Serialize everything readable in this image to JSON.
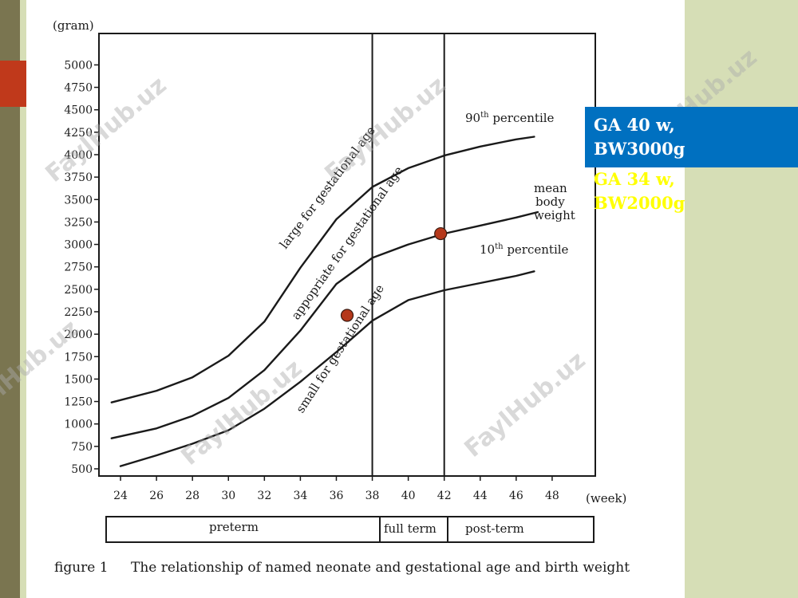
{
  "slide": {
    "ga_box_line1": "GA 40 w,",
    "ga_box_line2": "BW3000g",
    "ga_box_line3": "GA 34 w,",
    "ga_box_line4": "BW2000g",
    "watermark": "FaylHub.uz",
    "colors": {
      "left_bar": "#7a7550",
      "side_panel": "#d6deb6",
      "accent_red": "#c0391b",
      "blue_box": "#0070c0",
      "yellow_text": "#ffff00",
      "marker": "#b5381b"
    }
  },
  "chart_data": {
    "type": "line",
    "y_unit_label": "(gram)",
    "x_unit_label": "(week)",
    "x_ticks": [
      24,
      26,
      28,
      30,
      32,
      34,
      36,
      38,
      40,
      42,
      44,
      46,
      48
    ],
    "y_ticks": [
      500,
      750,
      1000,
      1250,
      1500,
      1750,
      2000,
      2250,
      2500,
      2750,
      3000,
      3250,
      3500,
      3750,
      4000,
      4250,
      4500,
      4750,
      5000
    ],
    "xlim": [
      22.8,
      50.4
    ],
    "ylim": [
      420,
      5350
    ],
    "grid": false,
    "vertical_lines": [
      38,
      42
    ],
    "series": [
      {
        "name": "90th percentile",
        "x": [
          23.5,
          26,
          28,
          30,
          32,
          34,
          36,
          38,
          40,
          42,
          44,
          46,
          47
        ],
        "y": [
          1240,
          1370,
          1520,
          1760,
          2140,
          2740,
          3280,
          3640,
          3850,
          3990,
          4090,
          4170,
          4200
        ]
      },
      {
        "name": "mean body weight",
        "x": [
          23.5,
          26,
          28,
          30,
          32,
          34,
          36,
          38,
          40,
          42,
          44,
          46,
          47.2
        ],
        "y": [
          840,
          950,
          1090,
          1290,
          1600,
          2040,
          2560,
          2850,
          3000,
          3120,
          3210,
          3300,
          3360
        ]
      },
      {
        "name": "10th percentile",
        "x": [
          24,
          26,
          28,
          30,
          32,
          34,
          36,
          38,
          40,
          42,
          44,
          46,
          47
        ],
        "y": [
          530,
          650,
          780,
          930,
          1170,
          1470,
          1800,
          2150,
          2380,
          2490,
          2570,
          2650,
          2700
        ]
      }
    ],
    "labels": {
      "p90": "90th percentile",
      "p90_sup": "th",
      "mean_line1": "mean",
      "mean_line2": "body",
      "mean_line3": "weight",
      "p10": "10th percentile",
      "p10_sup": "th",
      "large": "large for gestational age",
      "appropriate": "appopriate for gestational age",
      "small": "small for gestational age"
    },
    "points": [
      {
        "x": 36.6,
        "y": 2210
      },
      {
        "x": 41.8,
        "y": 3120
      }
    ],
    "terms": [
      "preterm",
      "full term",
      "post-term"
    ],
    "caption_label": "figure 1",
    "caption_text": "The relationship of named neonate and gestational age and birth weight"
  }
}
